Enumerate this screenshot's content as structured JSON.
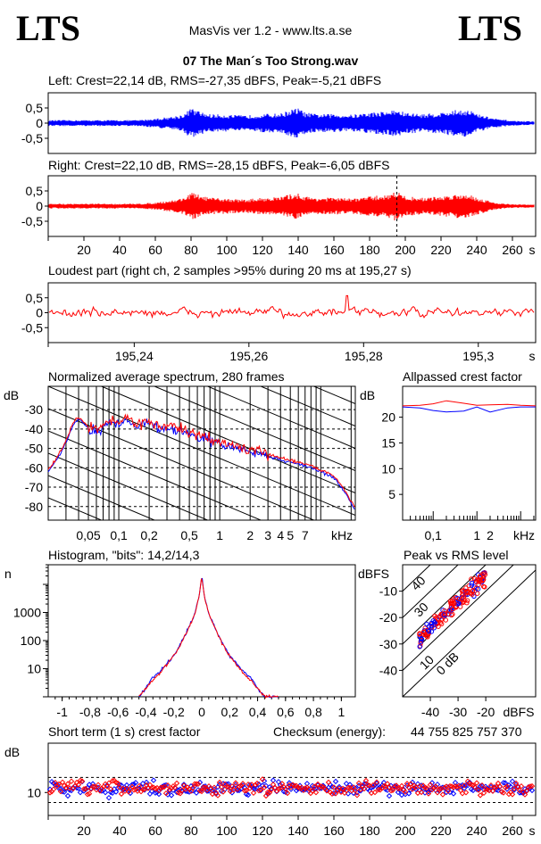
{
  "header": {
    "logo_left": "LTS",
    "logo_right": "LTS",
    "app_title": "MasVis ver 1.2 - www.lts.a.se",
    "file_name": "07 The Man´s Too Strong.wav"
  },
  "colors": {
    "left": "#0000ff",
    "right": "#ff0000"
  },
  "chart_data": [
    {
      "type": "line",
      "id": "left_waveform",
      "title": "Left: Crest=22,14 dB, RMS=-27,35 dBFS, Peak=-5,21 dBFS",
      "ylim": [
        -1,
        1
      ],
      "y_ticks": [
        0.5,
        0,
        -0.5
      ],
      "y_tick_labels": [
        "0,5",
        "0",
        "-0,5"
      ],
      "xlim": [
        0,
        273
      ],
      "envelope_x": [
        0,
        10,
        20,
        30,
        40,
        50,
        60,
        70,
        76,
        80,
        84,
        90,
        100,
        110,
        120,
        130,
        136,
        140,
        144,
        150,
        160,
        170,
        180,
        190,
        195,
        200,
        210,
        220,
        230,
        236,
        240,
        244,
        250,
        260,
        270
      ],
      "envelope_peak": [
        0.1,
        0.1,
        0.1,
        0.1,
        0.1,
        0.1,
        0.15,
        0.22,
        0.3,
        0.5,
        0.4,
        0.3,
        0.28,
        0.25,
        0.3,
        0.32,
        0.45,
        0.5,
        0.35,
        0.3,
        0.3,
        0.28,
        0.35,
        0.4,
        0.45,
        0.35,
        0.3,
        0.35,
        0.45,
        0.45,
        0.3,
        0.25,
        0.15,
        0.08,
        0.06
      ]
    },
    {
      "type": "line",
      "id": "right_waveform",
      "title": "Right: Crest=22,10 dB, RMS=-28,15 dBFS, Peak=-6,05 dBFS",
      "ylim": [
        -1,
        1
      ],
      "y_ticks": [
        0.5,
        0,
        -0.5
      ],
      "y_tick_labels": [
        "0,5",
        "0",
        "-0,5"
      ],
      "xlim": [
        0,
        273
      ],
      "x_ticks": [
        20,
        40,
        60,
        80,
        100,
        120,
        140,
        160,
        180,
        200,
        220,
        240,
        260
      ],
      "x_unit": "s",
      "marker_x": 195.27,
      "envelope_x": [
        0,
        10,
        20,
        30,
        40,
        50,
        60,
        70,
        76,
        80,
        84,
        90,
        100,
        110,
        120,
        130,
        136,
        140,
        144,
        150,
        160,
        170,
        180,
        190,
        195,
        200,
        210,
        220,
        230,
        236,
        240,
        244,
        250,
        260,
        270
      ],
      "envelope_peak": [
        0.08,
        0.08,
        0.08,
        0.08,
        0.08,
        0.08,
        0.12,
        0.2,
        0.28,
        0.45,
        0.38,
        0.28,
        0.25,
        0.22,
        0.28,
        0.3,
        0.4,
        0.42,
        0.32,
        0.28,
        0.28,
        0.25,
        0.32,
        0.38,
        0.5,
        0.32,
        0.28,
        0.32,
        0.4,
        0.4,
        0.28,
        0.22,
        0.12,
        0.06,
        0.05
      ]
    },
    {
      "type": "line",
      "id": "loudest_part",
      "title": "Loudest part (right ch, 2 samples >95% during 20 ms at 195,27 s)",
      "ylim": [
        -1,
        1
      ],
      "y_ticks": [
        0.5,
        0,
        -0.5
      ],
      "y_tick_labels": [
        "0,5",
        "0",
        "-0,5"
      ],
      "xlim": [
        195.225,
        195.31
      ],
      "x_ticks": [
        195.24,
        195.26,
        195.28,
        195.3
      ],
      "x_tick_labels": [
        "195,24",
        "195,26",
        "195,28",
        "195,3"
      ],
      "x_unit": "s",
      "amplitude_typical": 0.12,
      "peak_value": 0.95,
      "peak_x": 195.2771
    },
    {
      "type": "line",
      "id": "spectrum",
      "title": "Normalized average spectrum, 280 frames",
      "ylabel": "dB",
      "y_ticks": [
        -30,
        -40,
        -50,
        -60,
        -70,
        -80
      ],
      "ylim": [
        -87,
        -18
      ],
      "x_scale": "log",
      "xlim": [
        0.02,
        22
      ],
      "x_tick_labels": [
        "0,05",
        "0,1",
        "0,2",
        "0,5",
        "1",
        "2",
        "3",
        "4",
        "5",
        "7"
      ],
      "x_ticks": [
        0.05,
        0.1,
        0.2,
        0.5,
        1,
        2,
        3,
        4,
        5,
        7
      ],
      "x_unit": "kHz",
      "x": [
        0.02,
        0.025,
        0.03,
        0.035,
        0.04,
        0.05,
        0.06,
        0.07,
        0.08,
        0.1,
        0.12,
        0.15,
        0.2,
        0.25,
        0.3,
        0.4,
        0.5,
        0.6,
        0.8,
        1,
        1.5,
        2,
        3,
        4,
        5,
        6,
        7,
        8,
        10,
        12,
        14,
        16,
        18,
        20,
        22
      ],
      "series": [
        {
          "name": "Left",
          "values": [
            -62,
            -55,
            -47,
            -38,
            -35,
            -40,
            -41,
            -39,
            -36,
            -38,
            -35,
            -38,
            -37,
            -40,
            -39,
            -41,
            -43,
            -44,
            -46,
            -48,
            -50,
            -52,
            -54,
            -56,
            -57,
            -58,
            -59,
            -60,
            -62,
            -64,
            -66,
            -70,
            -74,
            -78,
            -82
          ]
        },
        {
          "name": "Right",
          "values": [
            -61,
            -54,
            -46,
            -37,
            -34,
            -39,
            -40,
            -38,
            -35,
            -37,
            -34,
            -37,
            -36,
            -39,
            -38,
            -40,
            -42,
            -43,
            -45,
            -47,
            -49,
            -51,
            -53,
            -55,
            -56,
            -57,
            -58,
            -59,
            -61,
            -63,
            -65,
            -69,
            -73,
            -77,
            -81
          ]
        }
      ]
    },
    {
      "type": "line",
      "id": "allpassed_crest",
      "title": "Allpassed crest factor",
      "ylabel": "dB",
      "y_ticks": [
        20,
        15,
        10,
        5
      ],
      "ylim": [
        0,
        26
      ],
      "x_scale": "log",
      "xlim": [
        0.02,
        22
      ],
      "x_tick_labels": [
        "0,1",
        "1",
        "2"
      ],
      "x_ticks": [
        0.1,
        1,
        2
      ],
      "x_unit": "kHz",
      "x": [
        0.02,
        0.05,
        0.1,
        0.2,
        0.5,
        1,
        2,
        5,
        10,
        22
      ],
      "series": [
        {
          "name": "Left",
          "values": [
            22,
            21.8,
            21.3,
            21,
            21.2,
            22,
            21,
            21.8,
            22,
            22
          ]
        },
        {
          "name": "Right",
          "values": [
            22.2,
            22.3,
            22.6,
            23.2,
            22.7,
            22.3,
            22.4,
            22.5,
            22.3,
            22.2
          ]
        }
      ]
    },
    {
      "type": "line",
      "id": "histogram",
      "title": "Histogram, \"bits\": 14,2/14,3",
      "ylabel": "n",
      "y_scale": "log",
      "y_ticks": [
        10,
        100,
        1000
      ],
      "ylim": [
        1,
        50000
      ],
      "xlim": [
        -1.1,
        1.1
      ],
      "x_ticks": [
        -1,
        -0.8,
        -0.6,
        -0.4,
        -0.2,
        0,
        0.2,
        0.4,
        0.6,
        0.8,
        1
      ],
      "x_tick_labels": [
        "-1",
        "-0,8",
        "-0,6",
        "-0,4",
        "-0,2",
        "0",
        "0,2",
        "0,4",
        "0,6",
        "0,8",
        "1"
      ],
      "x": [
        -0.45,
        -0.4,
        -0.35,
        -0.3,
        -0.25,
        -0.2,
        -0.15,
        -0.1,
        -0.05,
        -0.02,
        0,
        0.02,
        0.05,
        0.1,
        0.15,
        0.2,
        0.25,
        0.3,
        0.35,
        0.4,
        0.45,
        0.5,
        0.55
      ],
      "series": [
        {
          "name": "Left",
          "values": [
            1,
            2,
            5,
            8,
            15,
            30,
            80,
            250,
            900,
            3500,
            20000,
            3500,
            900,
            250,
            80,
            30,
            15,
            8,
            5,
            2,
            1,
            1,
            1
          ]
        },
        {
          "name": "Right",
          "values": [
            1,
            2,
            4,
            7,
            14,
            28,
            75,
            240,
            880,
            3400,
            20000,
            3400,
            880,
            240,
            75,
            28,
            14,
            7,
            4,
            2,
            1,
            1,
            1
          ]
        }
      ]
    },
    {
      "type": "scatter",
      "id": "peak_vs_rms",
      "title": "Peak vs RMS level",
      "ylabel": "dBFS",
      "xlabel": "dBFS",
      "xlim": [
        -50,
        -2
      ],
      "ylim": [
        -50,
        0
      ],
      "x_ticks": [
        -40,
        -30,
        -20
      ],
      "y_ticks": [
        -10,
        -20,
        -30,
        -40
      ],
      "diagonal_labels": [
        "40",
        "30",
        "20",
        "10",
        "0 dB"
      ],
      "cluster": {
        "rms_range": [
          -44,
          -20
        ],
        "crest_db": 16,
        "spread_db": 3
      }
    },
    {
      "type": "scatter",
      "id": "short_term_crest",
      "title": "Short term (1 s) crest factor",
      "ylabel": "dB",
      "y_scale": "log",
      "y_ticks": [
        10
      ],
      "ylim": [
        6,
        30
      ],
      "xlim": [
        0,
        273
      ],
      "x_ticks": [
        20,
        40,
        60,
        80,
        100,
        120,
        140,
        160,
        180,
        200,
        220,
        240,
        260
      ],
      "x_unit": "s",
      "dashed_levels": [
        8,
        14
      ],
      "typical_value": 11,
      "series": [
        {
          "name": "Left"
        },
        {
          "name": "Right"
        }
      ]
    }
  ],
  "checksum": {
    "label": "Checksum (energy):",
    "value": "44 755 825 757 370"
  }
}
